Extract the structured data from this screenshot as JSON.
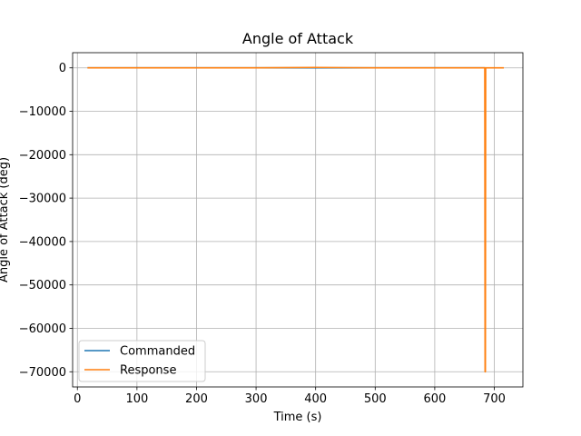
{
  "chart_data": {
    "type": "line",
    "title": "Angle of Attack",
    "xlabel": "Time (s)",
    "ylabel": "Angle of Attack (deg)",
    "xlim": [
      -8,
      748
    ],
    "ylim": [
      -73500,
      3500
    ],
    "xticks": [
      0,
      100,
      200,
      300,
      400,
      500,
      600,
      700
    ],
    "xtick_labels": [
      "0",
      "100",
      "200",
      "300",
      "400",
      "500",
      "600",
      "700"
    ],
    "yticks": [
      0,
      -10000,
      -20000,
      -30000,
      -40000,
      -50000,
      -60000,
      -70000
    ],
    "ytick_labels": [
      "0",
      "−10000",
      "−20000",
      "−30000",
      "−40000",
      "−50000",
      "−60000",
      "−70000"
    ],
    "grid": true,
    "legend_position": "lower-left",
    "series": [
      {
        "name": "Commanded",
        "color": "#1f77b4",
        "x": [
          17,
          100,
          200,
          300,
          400,
          500,
          600,
          685
        ],
        "y": [
          0,
          0,
          0,
          0,
          0,
          0,
          0,
          0
        ]
      },
      {
        "name": "Response",
        "color": "#ff7f0e",
        "x": [
          17,
          100,
          200,
          300,
          400,
          500,
          600,
          684,
          684.5,
          685,
          685.5,
          686,
          705,
          716
        ],
        "y": [
          0,
          0,
          0,
          0,
          100,
          0,
          0,
          0,
          -70000,
          -70000,
          0,
          0,
          0,
          0
        ]
      }
    ]
  }
}
